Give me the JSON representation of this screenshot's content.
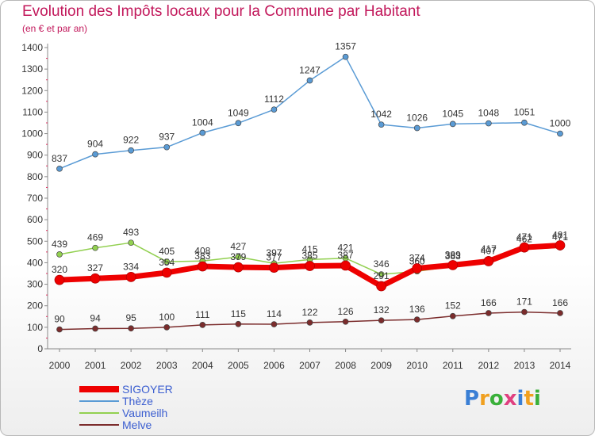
{
  "title": "Evolution des Impôts locaux pour la Commune par Habitant",
  "subtitle": "(en € et par an)",
  "logo": "Proxiti",
  "chart_data": {
    "type": "line",
    "x": [
      "2000",
      "2001",
      "2002",
      "2003",
      "2004",
      "2005",
      "2006",
      "2007",
      "2008",
      "2009",
      "2010",
      "2011",
      "2012",
      "2013",
      "2014"
    ],
    "ylim": [
      0,
      1400
    ],
    "yticks": [
      0,
      100,
      200,
      300,
      400,
      500,
      600,
      700,
      800,
      900,
      1000,
      1100,
      1200,
      1300,
      1400
    ],
    "grid": false,
    "legend_position": "bottom-left",
    "series": [
      {
        "name": "Thèze",
        "color": "#5a9bd5",
        "values": [
          837,
          904,
          922,
          937,
          1004,
          1049,
          1112,
          1247,
          1357,
          1042,
          1026,
          1045,
          1048,
          1051,
          1000
        ]
      },
      {
        "name": "Vaumeilh",
        "color": "#92d050",
        "values": [
          439,
          469,
          493,
          405,
          408,
          427,
          397,
          415,
          421,
          346,
          360,
          383,
          417,
          462,
          471
        ]
      },
      {
        "name": "Melve",
        "color": "#7b2c2c",
        "values": [
          90,
          94,
          95,
          100,
          111,
          115,
          114,
          122,
          126,
          132,
          136,
          152,
          166,
          171,
          166
        ]
      },
      {
        "name": "SIGOYER",
        "color": "#ee0000",
        "values": [
          320,
          327,
          334,
          354,
          383,
          379,
          377,
          385,
          387,
          291,
          374,
          389,
          407,
          471,
          481
        ]
      }
    ],
    "legend_order": [
      "SIGOYER",
      "Thèze",
      "Vaumeilh",
      "Melve"
    ]
  }
}
